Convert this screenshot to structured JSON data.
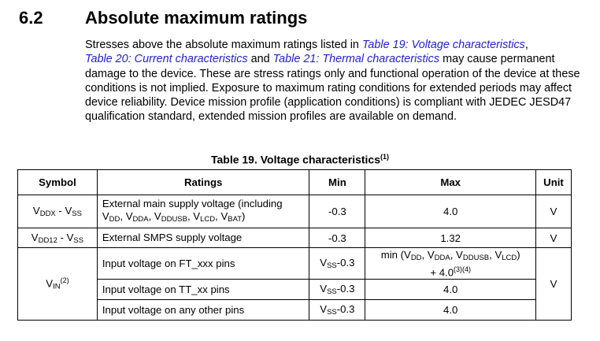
{
  "section": {
    "number": "6.2",
    "title": "Absolute maximum ratings"
  },
  "intro": {
    "p1": "Stresses above the absolute maximum ratings listed in ",
    "link1": "Table 19: Voltage characteristics",
    "p2": ",",
    "link2": "Table 20: Current characteristics",
    "p3": " and ",
    "link3": "Table 21: Thermal characteristics",
    "p4": " may cause permanent damage to the device. These are stress ratings only and functional operation of the device at these conditions is not implied. Exposure to maximum rating conditions for extended periods may affect device reliability. Device mission profile (application conditions) is compliant with JEDEC JESD47 qualification standard, extended mission profiles are available on demand."
  },
  "table": {
    "caption": "Table 19. Voltage characteristics",
    "caption_note": "(1)",
    "headers": {
      "symbol": "Symbol",
      "ratings": "Ratings",
      "min": "Min",
      "max": "Max",
      "unit": "Unit"
    },
    "rows": [
      {
        "symbol": "VDDX - VSS",
        "rating": "External main supply voltage (including VDD, VDDA, VDDUSB, VLCD, VBAT)",
        "min": "-0.3",
        "max": "4.0",
        "unit": "V"
      },
      {
        "symbol": "VDD12 - VSS",
        "rating": "External SMPS supply voltage",
        "min": "-0.3",
        "max": "1.32",
        "unit": "V"
      },
      {
        "symbol": "VIN(2)",
        "rating": "Input voltage on FT_xxx pins",
        "min": "VSS-0.3",
        "max": "min (VDD, VDDA, VDDUSB, VLCD) + 4.0(3)(4)",
        "unit": "V"
      },
      {
        "rating": "Input voltage on TT_xx pins",
        "min": "VSS-0.3",
        "max": "4.0"
      },
      {
        "rating": "Input voltage on any other pins",
        "min": "VSS-0.3",
        "max": "4.0"
      }
    ]
  }
}
